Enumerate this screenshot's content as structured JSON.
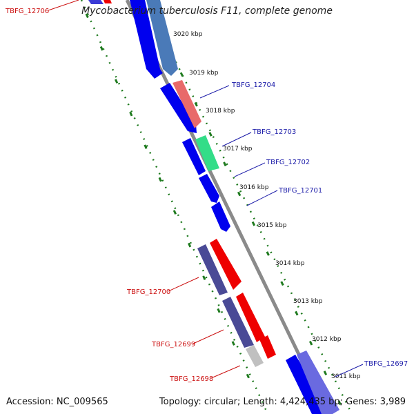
{
  "title": "Mycobacterium tuberculosis F11, complete genome",
  "accession": "Accession: NC_009565",
  "topology": "Topology: circular; Length: 4,424,435 bp; Genes: 3,989",
  "colors": {
    "forward": "#0000ee",
    "reverse": "#ee0000",
    "forward_label": "#1a1aa8",
    "reverse_label": "#cc1111",
    "backbone": "#8a8a8a",
    "dotted_track": "#1e7a1e"
  },
  "ticks": [
    "3020 kbp",
    "3019 kbp",
    "3018 kbp",
    "3017 kbp",
    "3016 kbp",
    "3015 kbp",
    "3014 kbp",
    "3013 kbp",
    "3012 kbp",
    "3011 kbp"
  ],
  "gene_labels": {
    "forward": [
      "TBFG_12704",
      "TBFG_12703",
      "TBFG_12702",
      "TBFG_12701",
      "TBFG_12697"
    ],
    "reverse": [
      "TBFG_12706",
      "TBFG_12700",
      "TBFG_12699",
      "TBFG_12698"
    ]
  }
}
